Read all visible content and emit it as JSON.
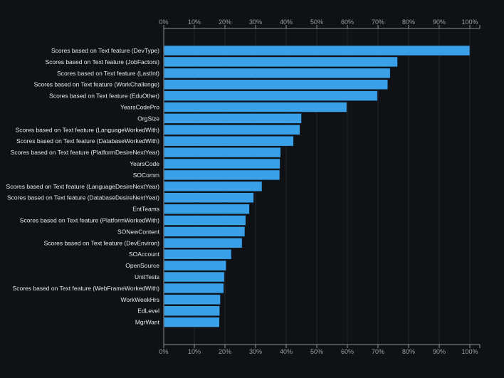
{
  "colors": {
    "background": "#0f1115",
    "bar_fill": "#3aa0e8",
    "bar_stroke": "#0e1e2e",
    "axis": "#8b9098",
    "grid": "#23272e",
    "text": "#e6e8eb",
    "tick_text": "#9aa0a6"
  },
  "chart_data": {
    "type": "bar",
    "orientation": "horizontal",
    "title": "",
    "xlabel": "",
    "ylabel": "",
    "xlim": [
      0,
      100
    ],
    "x_ticks": [
      0,
      10,
      20,
      30,
      40,
      50,
      60,
      70,
      80,
      90,
      100
    ],
    "x_tick_labels": [
      "0%",
      "10%",
      "20%",
      "30%",
      "40%",
      "50%",
      "60%",
      "70%",
      "80%",
      "90%",
      "100%"
    ],
    "x_axis_position": [
      "top",
      "bottom"
    ],
    "grid": true,
    "categories": [
      "Scores based on Text feature (DevType)",
      "Scores based on Text feature (JobFactors)",
      "Scores based on Text feature (LastInt)",
      "Scores based on Text feature (WorkChallenge)",
      "Scores based on Text feature (EduOther)",
      "YearsCodePro",
      "OrgSize",
      "Scores based on Text feature (LanguageWorkedWith)",
      "Scores based on Text feature (DatabaseWorkedWith)",
      "Scores based on Text feature (PlatformDesireNextYear)",
      "YearsCode",
      "SOComm",
      "Scores based on Text feature (LanguageDesireNextYear)",
      "Scores based on Text feature (DatabaseDesireNextYear)",
      "EntTeams",
      "Scores based on Text feature (PlatformWorkedWith)",
      "SONewContent",
      "Scores based on Text feature (DevEnviron)",
      "SOAccount",
      "OpenSource",
      "UnitTests",
      "Scores based on Text feature (WebFrameWorkedWith)",
      "WorkWeekHrs",
      "EdLevel",
      "MgrWant"
    ],
    "values": [
      100,
      76.4,
      74,
      73.2,
      69.8,
      59.8,
      45,
      44.5,
      42.4,
      38.2,
      38,
      37.9,
      32.1,
      29.4,
      28,
      26.8,
      26.5,
      25.6,
      22.1,
      20.4,
      19.8,
      19.6,
      18.5,
      18.3,
      18.2
    ]
  }
}
